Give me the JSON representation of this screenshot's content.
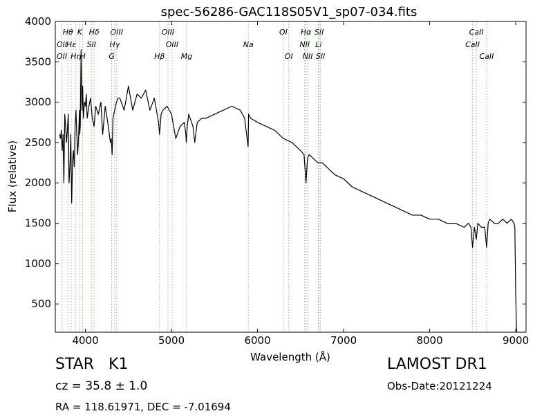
{
  "chart_data": {
    "type": "line",
    "title": "spec-56286-GAC118S05V1_sp07-034.fits",
    "xlabel": "Wavelength (Å)",
    "ylabel": "Flux (relative)",
    "xlim": [
      3650,
      9120
    ],
    "ylim": [
      150,
      4000
    ],
    "xticks": [
      4000,
      5000,
      6000,
      7000,
      8000,
      9000
    ],
    "yticks": [
      500,
      1000,
      1500,
      2000,
      2500,
      3000,
      3500,
      4000
    ],
    "grid": false,
    "line_color": "#000000",
    "line_marker_color": "#7fbf7f",
    "series": [
      {
        "x": [
          3700,
          3710,
          3720,
          3730,
          3740,
          3750,
          3760,
          3770,
          3780,
          3790,
          3800,
          3810,
          3820,
          3830,
          3840,
          3850,
          3860,
          3870,
          3880,
          3890,
          3900,
          3910,
          3920,
          3930,
          3934,
          3940,
          3950,
          3960,
          3968,
          3975,
          3990,
          4000,
          4010,
          4020,
          4040,
          4060,
          4080,
          4101,
          4120,
          4150,
          4180,
          4200,
          4230,
          4260,
          4290,
          4300,
          4310,
          4320,
          4340,
          4360,
          4380,
          4400,
          4450,
          4500,
          4550,
          4600,
          4650,
          4700,
          4750,
          4800,
          4850,
          4861,
          4880,
          4900,
          4950,
          5000,
          5050,
          5100,
          5150,
          5167,
          5172,
          5183,
          5200,
          5250,
          5270,
          5300,
          5350,
          5400,
          5500,
          5600,
          5700,
          5800,
          5850,
          5890,
          5896,
          5920,
          6000,
          6100,
          6200,
          6300,
          6400,
          6450,
          6500,
          6540,
          6563,
          6580,
          6600,
          6650,
          6700,
          6750,
          6800,
          6850,
          6900,
          7000,
          7100,
          7200,
          7300,
          7400,
          7500,
          7600,
          7700,
          7800,
          7900,
          8000,
          8100,
          8200,
          8300,
          8400,
          8450,
          8480,
          8498,
          8520,
          8542,
          8560,
          8600,
          8640,
          8662,
          8680,
          8700,
          8750,
          8800,
          8850,
          8900,
          8950,
          8980,
          8990,
          9000,
          9010
        ],
        "y": [
          2600,
          2550,
          2650,
          2400,
          2600,
          2000,
          2850,
          2700,
          2500,
          2650,
          2850,
          2000,
          2200,
          2600,
          1750,
          2250,
          2400,
          2200,
          2700,
          2900,
          2600,
          2350,
          2550,
          2900,
          2600,
          2700,
          3650,
          2900,
          3200,
          2800,
          3000,
          2950,
          3100,
          2800,
          2950,
          3050,
          2800,
          2700,
          2950,
          2850,
          3000,
          2600,
          2950,
          2750,
          2500,
          2550,
          2350,
          2800,
          2900,
          3000,
          3050,
          3050,
          2900,
          3200,
          2900,
          3100,
          3050,
          3150,
          2900,
          3050,
          2750,
          2600,
          2850,
          2900,
          2950,
          2850,
          2550,
          2700,
          2750,
          2600,
          2500,
          2700,
          2850,
          2700,
          2500,
          2750,
          2800,
          2800,
          2850,
          2900,
          2950,
          2900,
          2800,
          2450,
          2850,
          2800,
          2750,
          2700,
          2650,
          2550,
          2500,
          2450,
          2400,
          2350,
          2000,
          2300,
          2350,
          2300,
          2250,
          2250,
          2200,
          2150,
          2100,
          2050,
          1950,
          1900,
          1850,
          1800,
          1750,
          1700,
          1650,
          1600,
          1600,
          1550,
          1550,
          1500,
          1500,
          1450,
          1500,
          1450,
          1200,
          1450,
          1300,
          1500,
          1450,
          1450,
          1200,
          1500,
          1550,
          1500,
          1500,
          1550,
          1500,
          1550,
          1500,
          1450,
          600,
          150
        ]
      }
    ],
    "line_markers": [
      {
        "label": "Hθ",
        "x": 3797,
        "row": 0
      },
      {
        "label": "K",
        "x": 3934,
        "row": 0
      },
      {
        "label": "Hδ",
        "x": 4101,
        "row": 0
      },
      {
        "label": "OIII",
        "x": 4363,
        "row": 0
      },
      {
        "label": "OIII",
        "x": 4959,
        "row": 0
      },
      {
        "label": "OI",
        "x": 6300,
        "row": 0
      },
      {
        "label": "Hα",
        "x": 6563,
        "row": 0
      },
      {
        "label": "SII",
        "x": 6716,
        "row": 0
      },
      {
        "label": "CaII",
        "x": 8542,
        "row": 0
      },
      {
        "label": "OII",
        "x": 3727,
        "row": 1
      },
      {
        "label": "Hε",
        "x": 3835,
        "row": 1
      },
      {
        "label": "SII",
        "x": 4070,
        "row": 1
      },
      {
        "label": "Hγ",
        "x": 4340,
        "row": 1
      },
      {
        "label": "OIII",
        "x": 5007,
        "row": 1
      },
      {
        "label": "NII",
        "x": 6548,
        "row": 1
      },
      {
        "label": "Li",
        "x": 6708,
        "row": 1
      },
      {
        "label": "CaII",
        "x": 8498,
        "row": 1
      },
      {
        "label": "OII",
        "x": 3727,
        "row": 2
      },
      {
        "label": "Hη",
        "x": 3889,
        "row": 2
      },
      {
        "label": "H",
        "x": 3968,
        "row": 2
      },
      {
        "label": "G",
        "x": 4305,
        "row": 2
      },
      {
        "label": "Hβ",
        "x": 4861,
        "row": 2
      },
      {
        "label": "Mg",
        "x": 5175,
        "row": 2
      },
      {
        "label": "Na",
        "x": 5893,
        "row": 1
      },
      {
        "label": "OI",
        "x": 6363,
        "row": 2
      },
      {
        "label": "NII",
        "x": 6583,
        "row": 2
      },
      {
        "label": "SII",
        "x": 6731,
        "row": 2
      },
      {
        "label": "CaII",
        "x": 8662,
        "row": 2
      }
    ]
  },
  "info": {
    "object_class": "STAR   K1",
    "survey": "LAMOST DR1",
    "redshift": "cz = 35.8 ± 1.0",
    "obs_date": "Obs-Date:20121224",
    "coords": "RA = 118.61971, DEC = -7.01694"
  }
}
